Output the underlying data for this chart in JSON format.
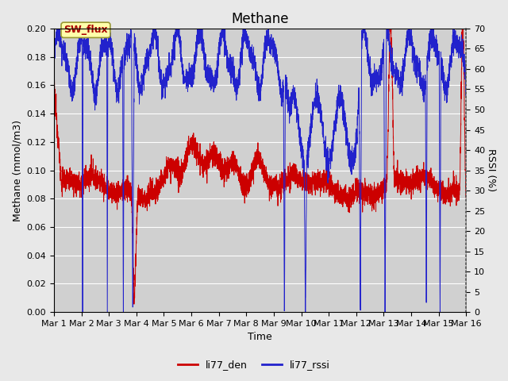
{
  "title": "Methane",
  "xlabel": "Time",
  "ylabel_left": "Methane (mmol/m3)",
  "ylabel_right": "RSSI (%)",
  "annotation_text": "SW_flux",
  "left_ylim": [
    0.0,
    0.2
  ],
  "right_ylim": [
    0,
    70
  ],
  "left_yticks": [
    0.0,
    0.02,
    0.04,
    0.06,
    0.08,
    0.1,
    0.12,
    0.14,
    0.16,
    0.18,
    0.2
  ],
  "right_yticks": [
    0,
    5,
    10,
    15,
    20,
    25,
    30,
    35,
    40,
    45,
    50,
    55,
    60,
    65,
    70
  ],
  "fig_bg_color": "#e8e8e8",
  "plot_bg_color": "#d0d0d0",
  "grid_color": "#ffffff",
  "legend_entries": [
    "li77_den",
    "li77_rssi"
  ],
  "legend_colors": [
    "#cc0000",
    "#2222cc"
  ],
  "line_color_den": "#cc0000",
  "line_color_rssi": "#2222cc",
  "n_days": 15,
  "title_fontsize": 12,
  "axis_label_fontsize": 9,
  "tick_fontsize": 8,
  "legend_fontsize": 9
}
